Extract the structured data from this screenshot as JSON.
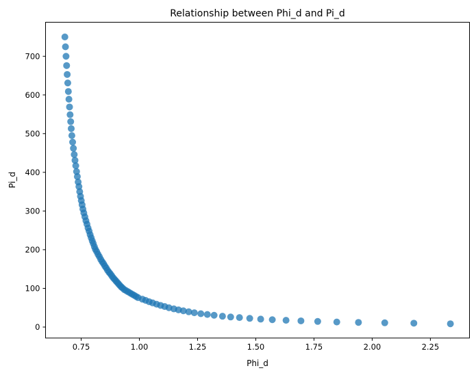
{
  "chart_data": {
    "type": "scatter",
    "title": "Relationship between Phi_d and Pi_d",
    "xlabel": "Phi_d",
    "ylabel": "Pi_d",
    "xlim": [
      0.597,
      2.418
    ],
    "ylim": [
      -28.3,
      788
    ],
    "xticks": [
      0.75,
      1.0,
      1.25,
      1.5,
      1.75,
      2.0,
      2.25
    ],
    "xtick_labels": [
      "0.75",
      "1.00",
      "1.25",
      "1.50",
      "1.75",
      "2.00",
      "2.25"
    ],
    "yticks": [
      0,
      100,
      200,
      300,
      400,
      500,
      600,
      700
    ],
    "ytick_labels": [
      "0",
      "100",
      "200",
      "300",
      "400",
      "500",
      "600",
      "700"
    ],
    "grid": false,
    "marker_color": "#1f77b4",
    "marker_alpha": 0.75,
    "x": [
      0.68,
      0.6825,
      0.685,
      0.6875,
      0.69,
      0.6924,
      0.695,
      0.6974,
      0.7,
      0.7024,
      0.705,
      0.7073,
      0.71,
      0.7133,
      0.7167,
      0.7201,
      0.7235,
      0.7268,
      0.7302,
      0.7336,
      0.737,
      0.7404,
      0.7437,
      0.7471,
      0.7505,
      0.754,
      0.7574,
      0.7614,
      0.7659,
      0.7704,
      0.775,
      0.7795,
      0.784,
      0.7885,
      0.793,
      0.7975,
      0.802,
      0.8066,
      0.8111,
      0.8166,
      0.8224,
      0.8283,
      0.8341,
      0.84,
      0.8458,
      0.8516,
      0.8575,
      0.8633,
      0.8692,
      0.875,
      0.8808,
      0.8867,
      0.8925,
      0.8984,
      0.9042,
      0.91,
      0.9159,
      0.9217,
      0.9276,
      0.935,
      0.9435,
      0.952,
      0.9605,
      0.969,
      0.9776,
      0.986,
      0.9946,
      1.013,
      1.027,
      1.042,
      1.057,
      1.074,
      1.091,
      1.109,
      1.127,
      1.148,
      1.168,
      1.189,
      1.212,
      1.236,
      1.264,
      1.292,
      1.321,
      1.357,
      1.392,
      1.43,
      1.474,
      1.521,
      1.571,
      1.63,
      1.694,
      1.766,
      1.848,
      1.941,
      2.054,
      2.179,
      2.336
    ],
    "y": [
      750,
      724.5,
      700,
      676,
      653,
      631,
      609,
      589,
      569,
      549,
      531,
      513,
      495,
      478,
      462,
      446,
      431,
      417,
      402,
      389,
      375,
      363,
      350,
      338,
      327,
      316,
      305,
      295,
      285,
      275,
      266,
      256,
      248,
      239,
      231,
      223,
      216,
      208,
      201,
      195,
      188,
      182,
      175,
      169,
      164,
      158,
      153,
      147,
      142,
      138,
      133,
      128,
      124,
      120,
      116,
      112,
      108,
      104,
      101,
      97,
      94,
      91,
      88,
      85,
      82,
      79,
      76,
      72,
      69,
      65.5,
      62.5,
      59,
      56,
      53,
      50,
      47,
      44.5,
      42,
      39.5,
      37,
      34.5,
      32.5,
      30.5,
      28,
      26,
      24.5,
      22.5,
      20.5,
      19,
      17.5,
      16,
      14.5,
      13,
      12,
      11,
      10,
      8.5
    ]
  }
}
